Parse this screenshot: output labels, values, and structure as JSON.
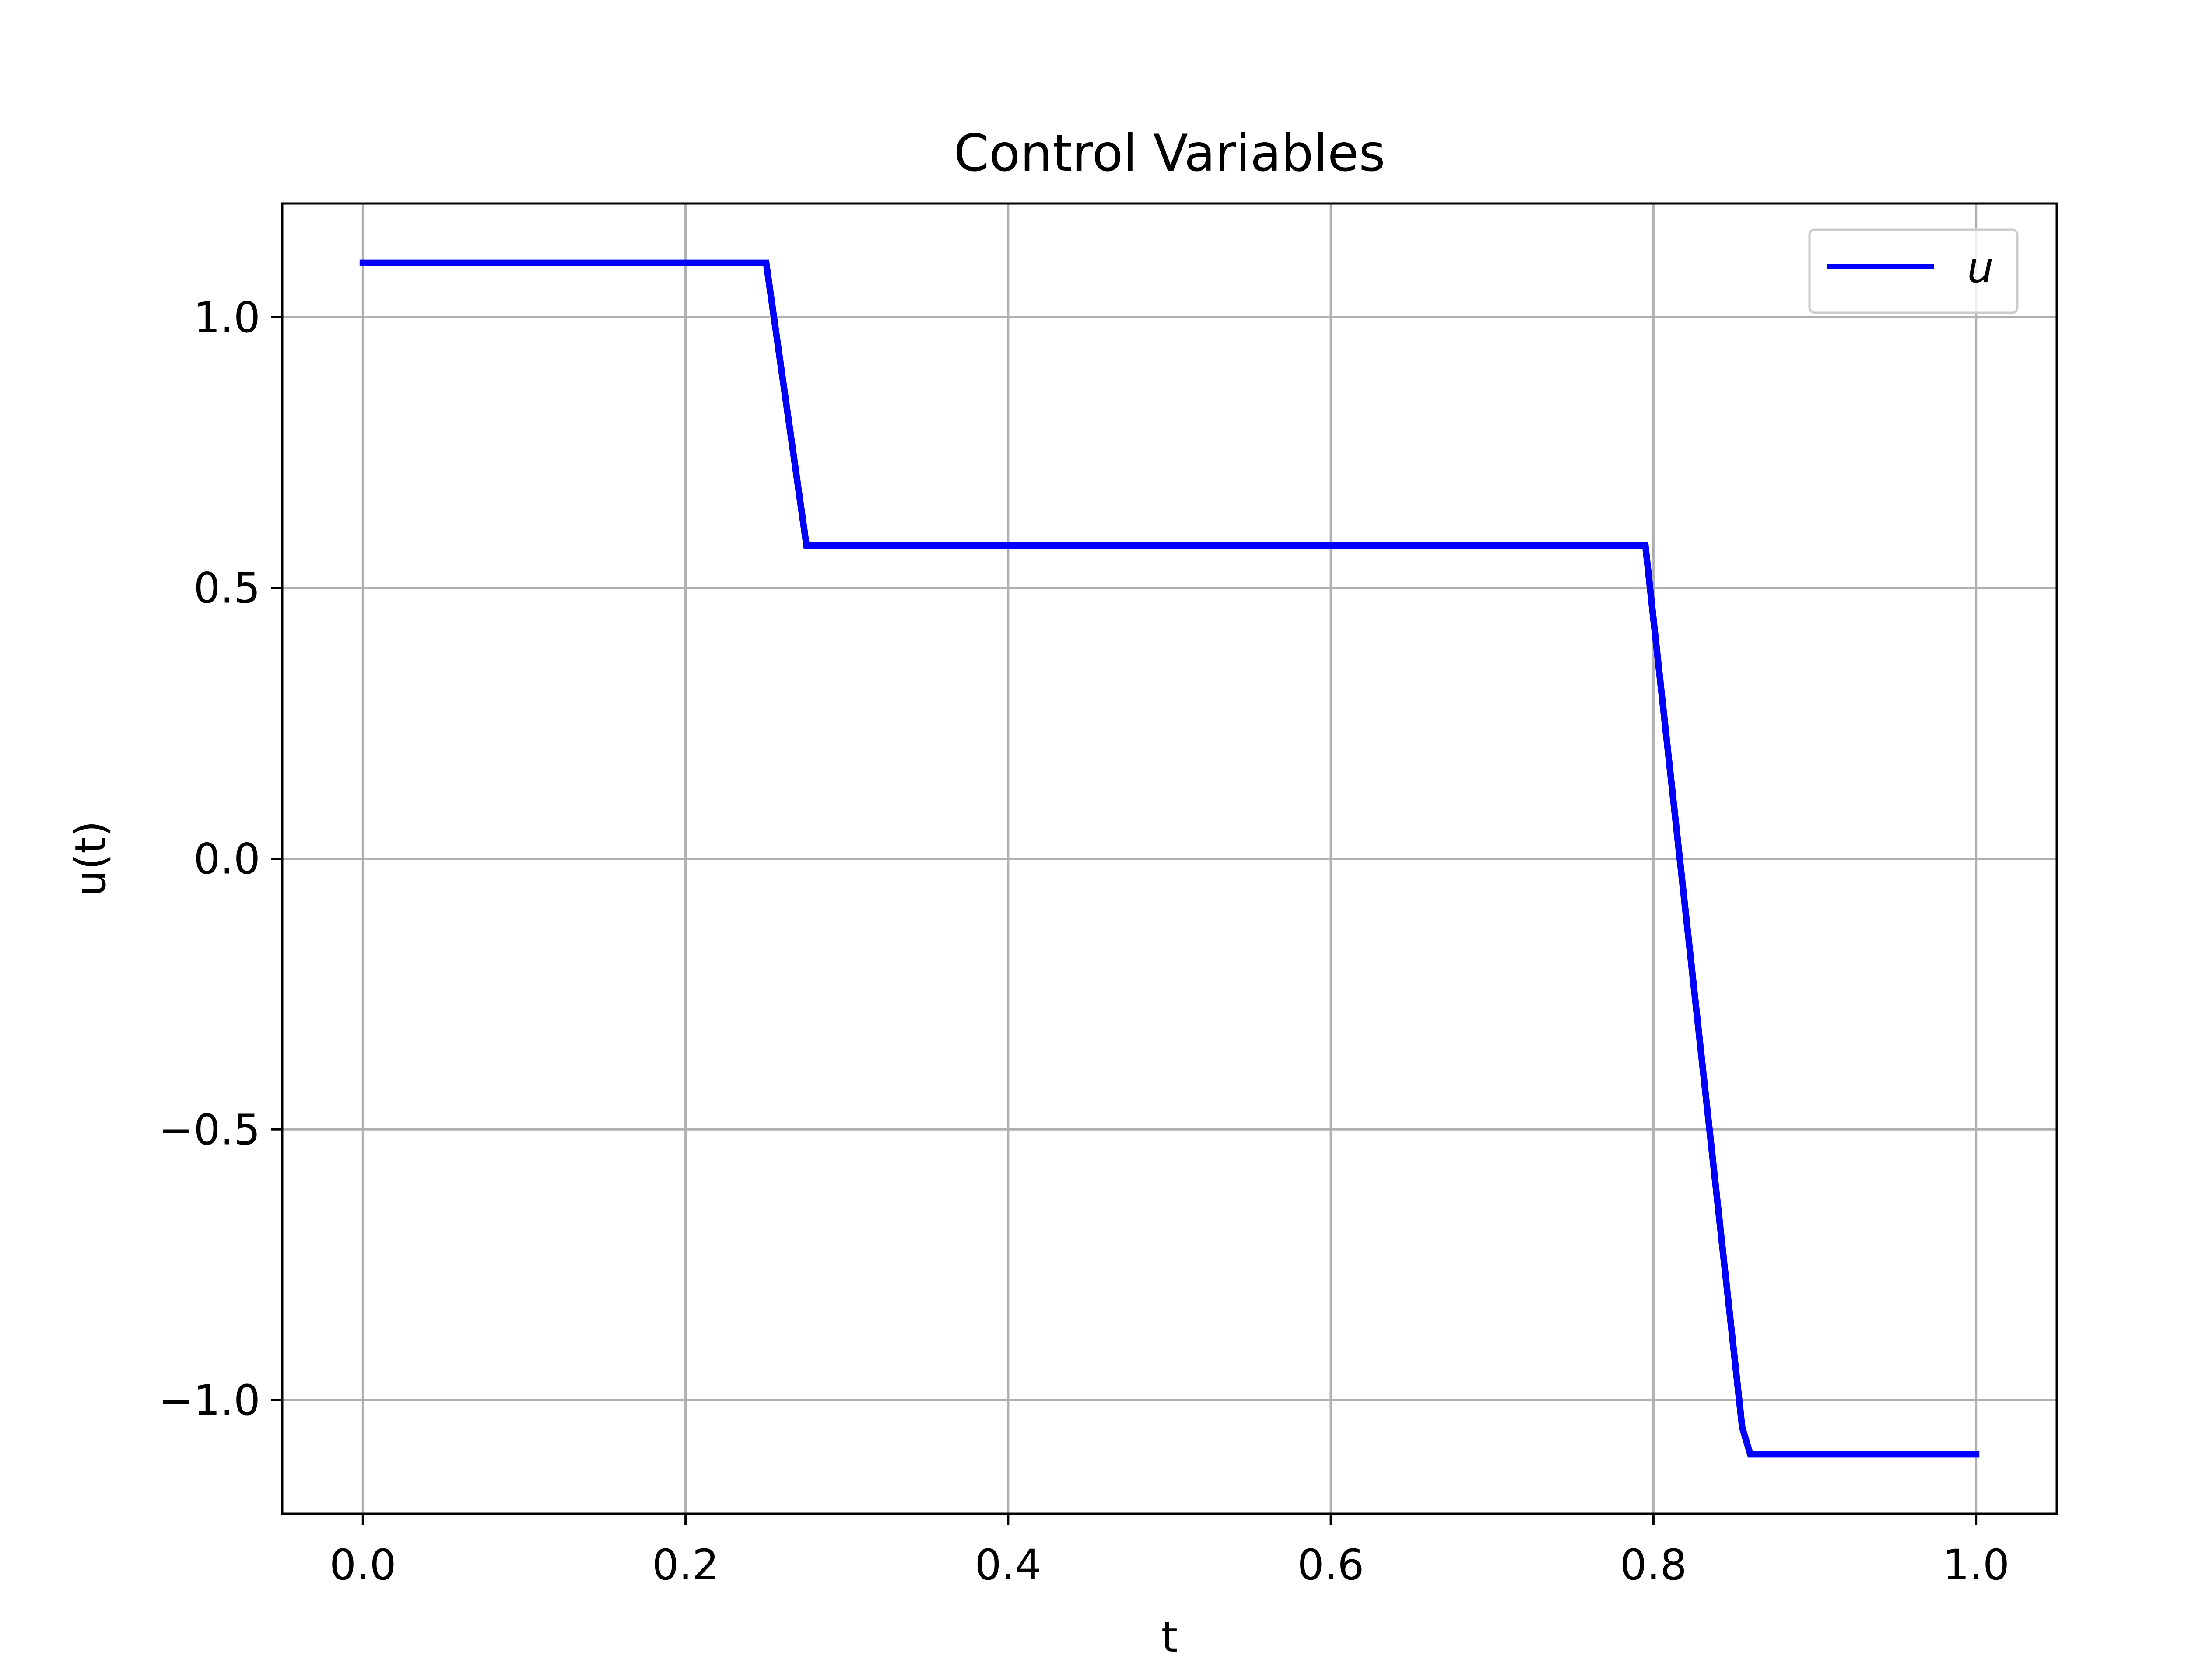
{
  "chart_data": {
    "type": "line",
    "title": "Control Variables",
    "xlabel": "t",
    "ylabel": "u(t)",
    "xlim": [
      -0.05,
      1.05
    ],
    "ylim": [
      -1.21,
      1.21
    ],
    "grid": true,
    "legend_position": "top-right",
    "x_ticks": [
      0.0,
      0.2,
      0.4,
      0.6,
      0.8,
      1.0
    ],
    "x_tick_labels": [
      "0.0",
      "0.2",
      "0.4",
      "0.6",
      "0.8",
      "1.0"
    ],
    "y_ticks": [
      -1.0,
      -0.5,
      0.0,
      0.5,
      1.0
    ],
    "y_tick_labels": [
      "−1.0",
      "−0.5",
      "0.0",
      "0.5",
      "1.0"
    ],
    "series": [
      {
        "name": "u",
        "color": "#0000ff",
        "x": [
          0.0,
          0.25,
          0.275,
          0.795,
          0.855,
          0.86,
          1.0
        ],
        "y": [
          1.1,
          1.1,
          0.578,
          0.578,
          -1.05,
          -1.1,
          -1.1
        ]
      }
    ]
  },
  "colors": {
    "grid": "#b0b0b0",
    "axes": "#000000",
    "legend_border": "#cccccc"
  }
}
